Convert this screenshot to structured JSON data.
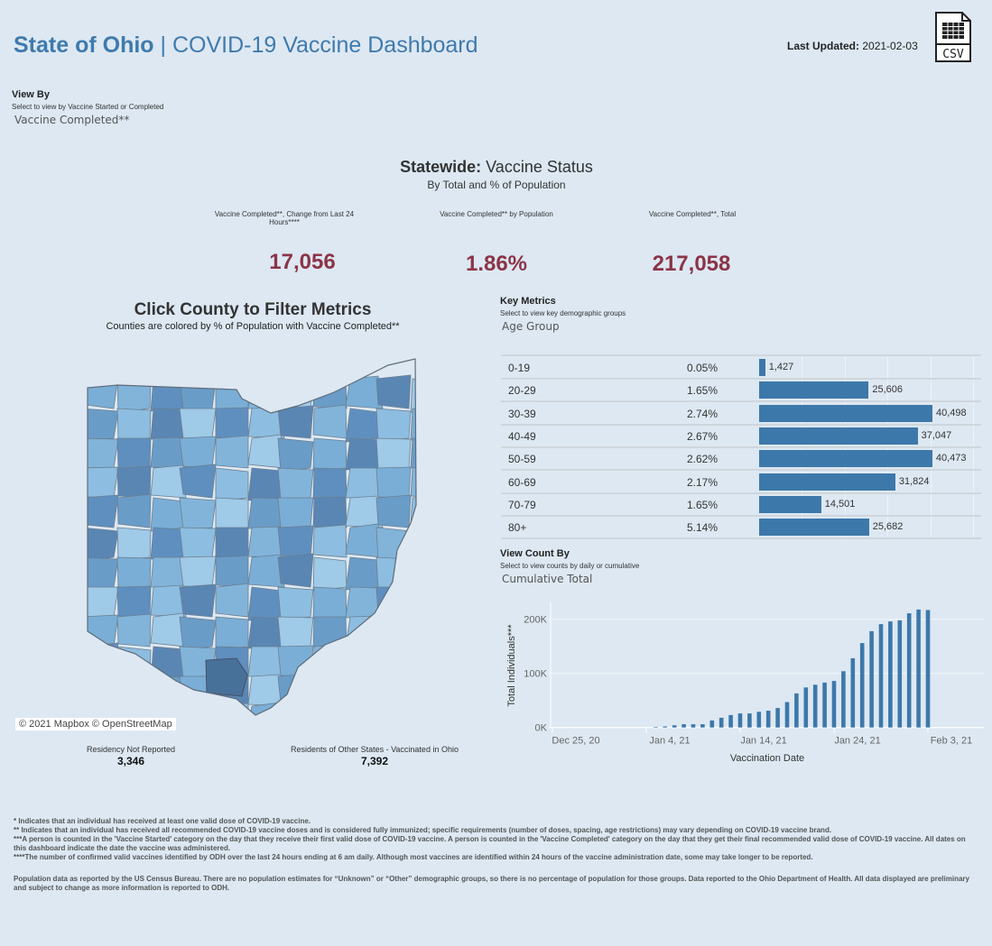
{
  "header": {
    "title_bold": "State of Ohio",
    "title_sep": " | ",
    "title_rest": "COVID-19 Vaccine Dashboard",
    "last_updated_label": "Last Updated:",
    "last_updated_value": "2021-02-03",
    "csv_label": "CSV",
    "csv_icon": "csv-file-icon"
  },
  "view_by": {
    "title": "View By",
    "subtitle": "Select to view by Vaccine Started or Completed",
    "value": "Vaccine Completed**"
  },
  "statewide": {
    "title_bold": "Statewide:",
    "title_rest": " Vaccine Status",
    "subtitle": "By Total and % of Population",
    "kpis": [
      {
        "label": "Vaccine Completed**, Change from Last 24 Hours****",
        "value": "17,056"
      },
      {
        "label": "Vaccine Completed** by Population",
        "value": "1.86%"
      },
      {
        "label": "Vaccine Completed**, Total",
        "value": "217,058"
      }
    ]
  },
  "map": {
    "title": "Click County to Filter Metrics",
    "subtitle": "Counties are colored by % of Population with Vaccine Completed**",
    "attribution": "© 2021 Mapbox © OpenStreetMap",
    "residency_not_reported_label": "Residency Not Reported",
    "residency_not_reported_value": "3,346",
    "other_states_label": "Residents of Other States - Vaccinated in Ohio",
    "other_states_value": "7,392"
  },
  "key_metrics": {
    "title": "Key Metrics",
    "subtitle": "Select to view key demographic groups",
    "value": "Age Group",
    "rows": [
      {
        "age": "0-19",
        "pct": "0.05%",
        "count": 1427,
        "label": "1,427"
      },
      {
        "age": "20-29",
        "pct": "1.65%",
        "count": 25606,
        "label": "25,606"
      },
      {
        "age": "30-39",
        "pct": "2.74%",
        "count": 40498,
        "label": "40,498"
      },
      {
        "age": "40-49",
        "pct": "2.67%",
        "count": 37047,
        "label": "37,047"
      },
      {
        "age": "50-59",
        "pct": "2.62%",
        "count": 40473,
        "label": "40,473"
      },
      {
        "age": "60-69",
        "pct": "2.17%",
        "count": 31824,
        "label": "31,824"
      },
      {
        "age": "70-79",
        "pct": "1.65%",
        "count": 14501,
        "label": "14,501"
      },
      {
        "age": "80+",
        "pct": "5.14%",
        "count": 25682,
        "label": "25,682"
      }
    ]
  },
  "view_count": {
    "title": "View Count By",
    "subtitle": "Select to view counts by daily or cumulative",
    "value": "Cumulative Total"
  },
  "chart_data": {
    "type": "bar",
    "xlabel": "Vaccination Date",
    "ylabel": "Total Individuals***",
    "ylim": [
      0,
      230000
    ],
    "yticks": [
      {
        "v": 0,
        "label": "0K"
      },
      {
        "v": 100000,
        "label": "100K"
      },
      {
        "v": 200000,
        "label": "200K"
      }
    ],
    "xticks": [
      "Dec 25, 20",
      "Jan 4, 21",
      "Jan 14, 21",
      "Jan 24, 21",
      "Feb 3, 21"
    ],
    "x": [
      "2021-01-05",
      "2021-01-06",
      "2021-01-07",
      "2021-01-08",
      "2021-01-09",
      "2021-01-10",
      "2021-01-11",
      "2021-01-12",
      "2021-01-13",
      "2021-01-14",
      "2021-01-15",
      "2021-01-16",
      "2021-01-17",
      "2021-01-18",
      "2021-01-19",
      "2021-01-20",
      "2021-01-21",
      "2021-01-22",
      "2021-01-23",
      "2021-01-24",
      "2021-01-25",
      "2021-01-26",
      "2021-01-27",
      "2021-01-28",
      "2021-01-29",
      "2021-01-30",
      "2021-01-31",
      "2021-02-01",
      "2021-02-02",
      "2021-02-03"
    ],
    "values": [
      1000,
      2000,
      4000,
      6000,
      6000,
      6000,
      13000,
      18000,
      23000,
      26000,
      26000,
      29000,
      31000,
      36000,
      47000,
      63000,
      74000,
      79000,
      83000,
      86000,
      104000,
      128000,
      156000,
      178000,
      191000,
      196000,
      198000,
      211000,
      218000,
      217058
    ],
    "color": "#3d78aa",
    "grid": "horizontal"
  },
  "footnotes": [
    "* Indicates that an individual has received at least one valid dose of COVID-19 vaccine.",
    "** Indicates that an individual has received all recommended COVID-19 vaccine doses and is considered fully immunized; specific requirements (number of doses, spacing, age restrictions) may vary depending on COVID-19 vaccine brand.",
    "***A person is counted in the 'Vaccine Started' category on the day that they receive their first valid dose of COVID-19 vaccine.  A person is counted in the 'Vaccine Completed' category on the day that they get their final recommended valid dose of COVID-19 vaccine. All dates on this dashboard indicate the date the vaccine was administered.",
    "****The number of confirmed valid vaccines identified by ODH over the last 24 hours ending at 6 am daily. Although most vaccines are identified within 24 hours of the vaccine administration date, some may take longer to be reported.",
    "Population data as reported by the US Census Bureau. There are no population estimates for “Unknown” or “Other” demographic groups, so there is no percentage of population for those groups.  Data reported to the Ohio Department of Health.  All data displayed are preliminary and subject to change as more information is reported to ODH."
  ]
}
